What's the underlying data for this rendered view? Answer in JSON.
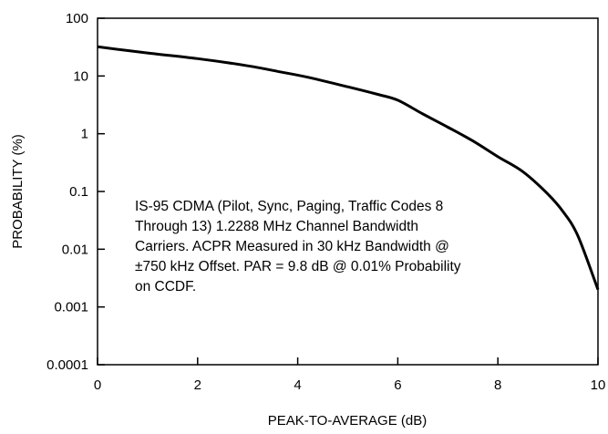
{
  "chart_data": {
    "type": "line",
    "title": "",
    "xlabel": "PEAK-TO-AVERAGE (dB)",
    "ylabel": "PROBABILITY (%)",
    "x_scale": "linear",
    "y_scale": "log",
    "xlim": [
      0,
      10
    ],
    "ylim": [
      0.0001,
      100
    ],
    "x_ticks": [
      "0",
      "2",
      "4",
      "6",
      "8",
      "10"
    ],
    "y_ticks": [
      "100",
      "10",
      "1",
      "0.1",
      "0.01",
      "0.001",
      "0.0001"
    ],
    "grid": false,
    "series": [
      {
        "x": [
          0,
          1,
          2,
          3,
          3.6,
          4.2,
          5,
          5.6,
          6,
          6.5,
          7,
          7.5,
          8,
          8.5,
          9,
          9.3,
          9.6,
          10
        ],
        "y": [
          32,
          25,
          20,
          15,
          12,
          9.5,
          6.5,
          4.8,
          3.8,
          2.2,
          1.3,
          0.75,
          0.4,
          0.22,
          0.09,
          0.045,
          0.017,
          0.002
        ]
      }
    ],
    "annotation_lines": [
      "IS-95 CDMA (Pilot, Sync, Paging, Traffic Codes 8",
      "Through 13) 1.2288 MHz Channel Bandwidth",
      "Carriers. ACPR Measured in 30 kHz Bandwidth @",
      "±750 kHz Offset. PAR = 9.8 dB @ 0.01% Probability",
      "on CCDF."
    ]
  }
}
